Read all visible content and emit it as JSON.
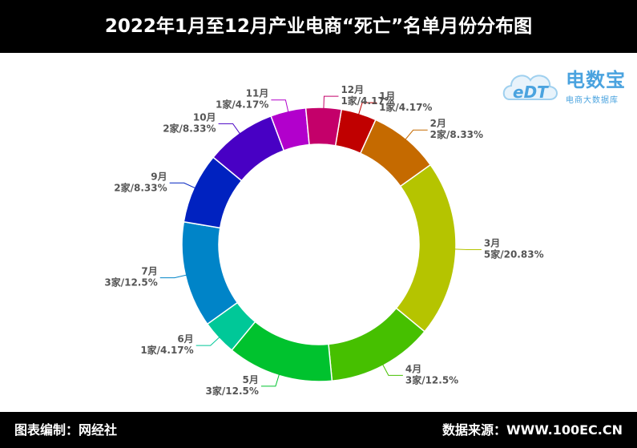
{
  "header": {
    "title": "2022年1月至12月产业电商“死亡”名单月份分布图"
  },
  "footer": {
    "left": "图表编制：网经社",
    "right": "数据来源：WWW.100EC.CN"
  },
  "logo": {
    "name": "电数宝",
    "subtitle": "电商大数据库",
    "mark": "eDT"
  },
  "chart_data": {
    "type": "pie",
    "donut": true,
    "title": "2022年1月至12月产业电商“死亡”名单月份分布图",
    "unit": "家",
    "slices": [
      {
        "label": "1月",
        "value": 1,
        "percent": "4.17%",
        "color": "#c00000"
      },
      {
        "label": "2月",
        "value": 2,
        "percent": "8.33%",
        "color": "#c56a00"
      },
      {
        "label": "3月",
        "value": 5,
        "percent": "20.83%",
        "color": "#b5c400"
      },
      {
        "label": "4月",
        "value": 3,
        "percent": "12.5%",
        "color": "#46c000"
      },
      {
        "label": "5月",
        "value": 3,
        "percent": "12.5%",
        "color": "#00c22e"
      },
      {
        "label": "6月",
        "value": 1,
        "percent": "4.17%",
        "color": "#00c898"
      },
      {
        "label": "7月",
        "value": 3,
        "percent": "12.5%",
        "color": "#0084c8"
      },
      {
        "label": "9月",
        "value": 2,
        "percent": "8.33%",
        "color": "#0022c0"
      },
      {
        "label": "10月",
        "value": 2,
        "percent": "8.33%",
        "color": "#4800c4"
      },
      {
        "label": "11月",
        "value": 1,
        "percent": "4.17%",
        "color": "#b200cc"
      },
      {
        "label": "12月",
        "value": 1,
        "percent": "4.17%",
        "color": "#c4006a"
      }
    ]
  }
}
